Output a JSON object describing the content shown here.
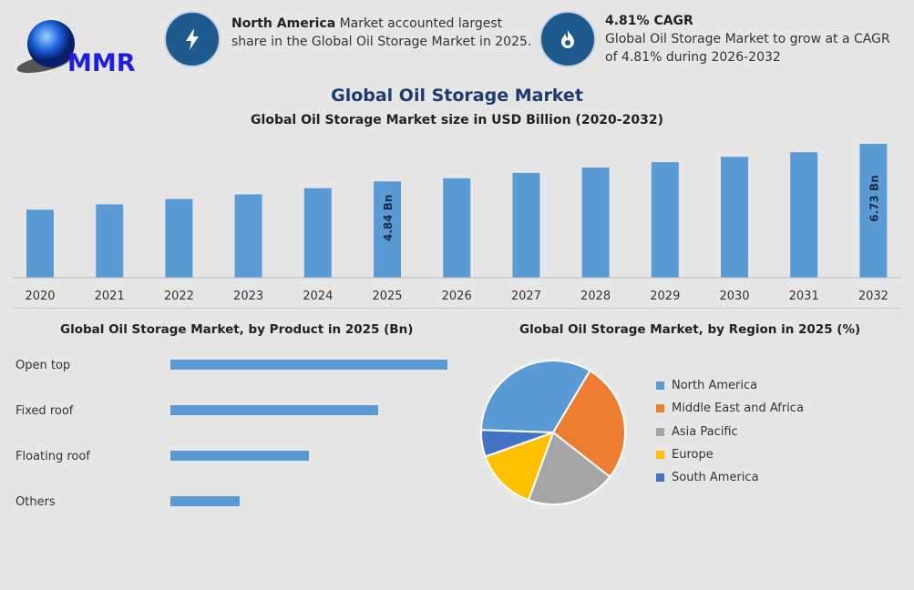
{
  "logo": {
    "text": "MMR"
  },
  "highlights": [
    {
      "icon": "lightning-icon",
      "bold": "North America",
      "text": " Market accounted largest share in the Global Oil Storage Market in 2025."
    },
    {
      "icon": "flame-icon",
      "bold": "4.81% CAGR",
      "text": "Global Oil Storage Market to grow at a CAGR of 4.81% during 2026-2032"
    }
  ],
  "title": "Global Oil Storage Market",
  "colors": {
    "bar": "#5b9bd5",
    "title": "#1f3a6e",
    "circle": "#1f5a8e"
  },
  "chart_data": [
    {
      "type": "bar",
      "title": "Global Oil Storage Market size in USD Billion (2020-2032)",
      "categories": [
        "2020",
        "2021",
        "2022",
        "2023",
        "2024",
        "2025",
        "2026",
        "2027",
        "2028",
        "2029",
        "2030",
        "2031",
        "2032"
      ],
      "values": [
        3.42,
        3.69,
        3.96,
        4.19,
        4.5,
        4.84,
        5.0,
        5.27,
        5.54,
        5.81,
        6.08,
        6.31,
        6.73
      ],
      "data_labels": {
        "2025": "4.84 Bn",
        "2032": "6.73 Bn"
      },
      "ylim": [
        0,
        7
      ],
      "grid": false
    },
    {
      "type": "bar",
      "orientation": "horizontal",
      "title": "Global Oil Storage Market, by Product in 2025 (Bn)",
      "categories": [
        "Open top",
        "Fixed roof",
        "Floating roof",
        "Others"
      ],
      "values": [
        4,
        3,
        2,
        1
      ]
    },
    {
      "type": "pie",
      "title": "Global Oil Storage Market, by Region in 2025 (%)",
      "categories": [
        "North America",
        "Middle East and Africa",
        "Asia Pacific",
        "Europe",
        "South America"
      ],
      "values": [
        33,
        27,
        20,
        14,
        6
      ],
      "colors": [
        "#5b9bd5",
        "#ed7d31",
        "#a5a5a5",
        "#ffc000",
        "#4472c4"
      ],
      "legend": "right"
    }
  ]
}
